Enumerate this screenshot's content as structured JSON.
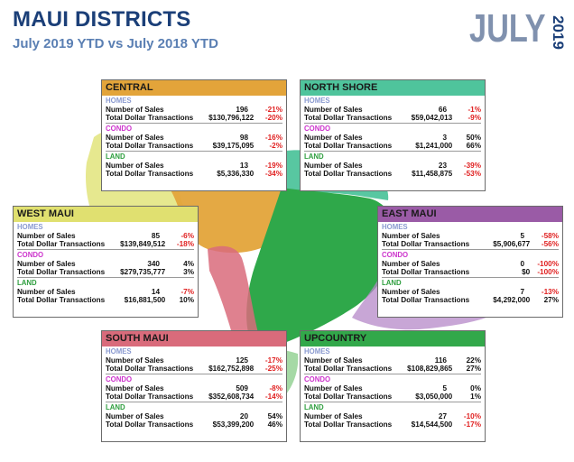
{
  "header": {
    "title": "MAUI DISTRICTS",
    "subtitle": "July 2019 YTD vs July 2018 YTD",
    "month": "JULY",
    "year": "2019"
  },
  "colors": {
    "title": "#1b3f78",
    "subtitle": "#5a7fb3",
    "homes_label": "#8a9ad0",
    "condo_label": "#cc33cc",
    "land_label": "#2e9e3e",
    "negative": "#e02020"
  },
  "section_labels": {
    "homes": "HOMES",
    "condo": "CONDO",
    "land": "LAND"
  },
  "row_labels": {
    "sales": "Number of Sales",
    "dollars": "Total Dollar Transactions"
  },
  "districts": {
    "central": {
      "name": "CENTRAL",
      "color": "#e3a43a",
      "homes": {
        "sales": "196",
        "sales_pct": "-21%",
        "dollars": "$130,796,122",
        "dollars_pct": "-20%"
      },
      "condo": {
        "sales": "98",
        "sales_pct": "-16%",
        "dollars": "$39,175,095",
        "dollars_pct": "-2%"
      },
      "land": {
        "sales": "13",
        "sales_pct": "-19%",
        "dollars": "$5,336,330",
        "dollars_pct": "-34%"
      }
    },
    "north_shore": {
      "name": "NORTH SHORE",
      "color": "#4fc49c",
      "homes": {
        "sales": "66",
        "sales_pct": "-1%",
        "dollars": "$59,042,013",
        "dollars_pct": "-9%"
      },
      "condo": {
        "sales": "3",
        "sales_pct": "50%",
        "dollars": "$1,241,000",
        "dollars_pct": "66%"
      },
      "land": {
        "sales": "23",
        "sales_pct": "-39%",
        "dollars": "$11,458,875",
        "dollars_pct": "-53%"
      }
    },
    "west_maui": {
      "name": "WEST MAUI",
      "color": "#e0e070",
      "homes": {
        "sales": "85",
        "sales_pct": "-6%",
        "dollars": "$139,849,512",
        "dollars_pct": "-18%"
      },
      "condo": {
        "sales": "340",
        "sales_pct": "4%",
        "dollars": "$279,735,777",
        "dollars_pct": "3%"
      },
      "land": {
        "sales": "14",
        "sales_pct": "-7%",
        "dollars": "$16,881,500",
        "dollars_pct": "10%"
      }
    },
    "east_maui": {
      "name": "EAST MAUI",
      "color": "#9a5ba6",
      "homes": {
        "sales": "5",
        "sales_pct": "-58%",
        "dollars": "$5,906,677",
        "dollars_pct": "-56%"
      },
      "condo": {
        "sales": "0",
        "sales_pct": "-100%",
        "dollars": "$0",
        "dollars_pct": "-100%"
      },
      "land": {
        "sales": "7",
        "sales_pct": "-13%",
        "dollars": "$4,292,000",
        "dollars_pct": "27%"
      }
    },
    "south_maui": {
      "name": "SOUTH MAUI",
      "color": "#d96b7b",
      "homes": {
        "sales": "125",
        "sales_pct": "-17%",
        "dollars": "$162,752,898",
        "dollars_pct": "-25%"
      },
      "condo": {
        "sales": "509",
        "sales_pct": "-8%",
        "dollars": "$352,608,734",
        "dollars_pct": "-14%"
      },
      "land": {
        "sales": "20",
        "sales_pct": "54%",
        "dollars": "$53,399,200",
        "dollars_pct": "46%"
      }
    },
    "upcountry": {
      "name": "UPCOUNTRY",
      "color": "#32a84a",
      "homes": {
        "sales": "116",
        "sales_pct": "22%",
        "dollars": "$108,829,865",
        "dollars_pct": "27%"
      },
      "condo": {
        "sales": "5",
        "sales_pct": "0%",
        "dollars": "$3,050,000",
        "dollars_pct": "1%"
      },
      "land": {
        "sales": "27",
        "sales_pct": "-10%",
        "dollars": "$14,544,500",
        "dollars_pct": "-17%"
      }
    }
  }
}
